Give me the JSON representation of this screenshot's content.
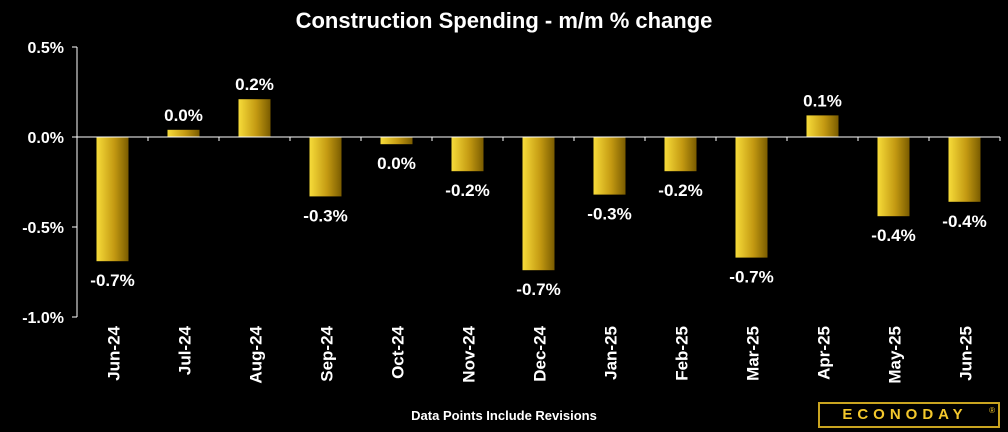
{
  "chart_data": {
    "type": "bar",
    "title": "Construction Spending - m/m % change",
    "footnote": "Data Points Include Revisions",
    "categories": [
      "Jun-24",
      "Jul-24",
      "Aug-24",
      "Sep-24",
      "Oct-24",
      "Nov-24",
      "Dec-24",
      "Jan-25",
      "Feb-25",
      "Mar-25",
      "Apr-25",
      "May-25",
      "Jun-25"
    ],
    "values": [
      -0.69,
      0.04,
      0.21,
      -0.33,
      -0.04,
      -0.19,
      -0.74,
      -0.32,
      -0.19,
      -0.67,
      0.12,
      -0.44,
      -0.36
    ],
    "labels": [
      "-0.7%",
      "0.0%",
      "0.2%",
      "-0.3%",
      "0.0%",
      "-0.2%",
      "-0.7%",
      "-0.3%",
      "-0.2%",
      "-0.7%",
      "0.1%",
      "-0.4%",
      "-0.4%"
    ],
    "ylim": [
      -1.0,
      0.5
    ],
    "yticks": [
      0.5,
      0.0,
      -0.5,
      -1.0
    ],
    "ytick_labels": [
      "0.5%",
      "0.0%",
      "-0.5%",
      "-1.0%"
    ],
    "xlabel": "",
    "ylabel": "",
    "grid": false,
    "colors": {
      "bar_light": "#f7dc3a",
      "bar_dark": "#7a5c00",
      "axis": "#ffffff",
      "background": "#000000"
    }
  },
  "branding": {
    "logo_text": "ECONODAY",
    "logo_mark": "®"
  }
}
